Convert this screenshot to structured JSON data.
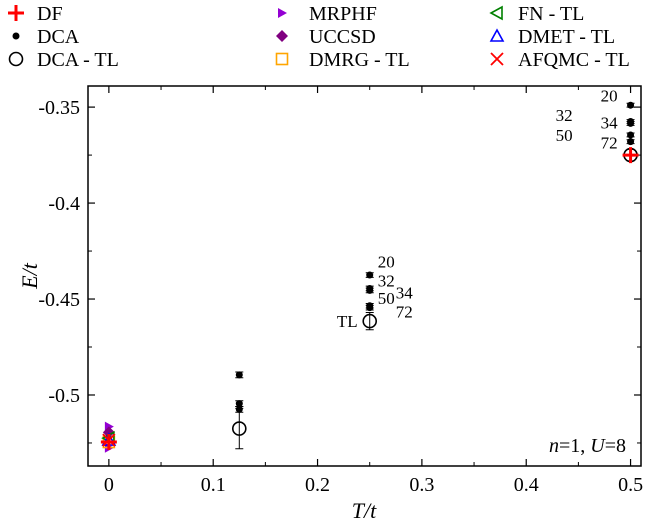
{
  "chart_data": {
    "type": "scatter",
    "xlabel": "T/t",
    "ylabel": "E/t",
    "xlim": [
      -0.02,
      0.51
    ],
    "ylim": [
      -0.537,
      -0.339
    ],
    "xticks": [
      "0",
      "0.1",
      "0.2",
      "0.3",
      "0.4",
      "0.5"
    ],
    "xtick_values": [
      0,
      0.1,
      0.2,
      0.3,
      0.4,
      0.5
    ],
    "yticks": [
      "-0.35",
      "-0.4",
      "-0.45",
      "-0.5"
    ],
    "ytick_values": [
      -0.35,
      -0.4,
      -0.45,
      -0.5
    ],
    "annotation": "n=1, U=8",
    "grid": false,
    "legend_placement": "top",
    "series": [
      {
        "name": "DF",
        "marker": "plus",
        "color": "#ff0000",
        "points": [
          {
            "x": 0,
            "y": -0.5245
          },
          {
            "x": 0.5,
            "y": -0.375
          }
        ]
      },
      {
        "name": "DCA",
        "marker": "dot",
        "color": "#000000",
        "points": [
          {
            "x": 0.125,
            "y": -0.4895,
            "err": 0.0015
          },
          {
            "x": 0.125,
            "y": -0.5045,
            "err": 0.0015
          },
          {
            "x": 0.125,
            "y": -0.5075,
            "err": 0.0015
          },
          {
            "x": 0.25,
            "y": -0.4375,
            "err": 0.0012
          },
          {
            "x": 0.25,
            "y": -0.4445,
            "err": 0.0012
          },
          {
            "x": 0.25,
            "y": -0.4455,
            "err": 0.0012
          },
          {
            "x": 0.25,
            "y": -0.4535,
            "err": 0.0012
          },
          {
            "x": 0.25,
            "y": -0.4545,
            "err": 0.0012
          },
          {
            "x": 0.5,
            "y": -0.349,
            "err": 0.001
          },
          {
            "x": 0.5,
            "y": -0.3575,
            "err": 0.001
          },
          {
            "x": 0.5,
            "y": -0.3585,
            "err": 0.001
          },
          {
            "x": 0.5,
            "y": -0.3645,
            "err": 0.001
          },
          {
            "x": 0.5,
            "y": -0.368,
            "err": 0.001
          }
        ]
      },
      {
        "name": "DCA - TL",
        "marker": "open-circle",
        "color": "#000000",
        "points": [
          {
            "x": 0.125,
            "y": -0.5175,
            "err": 0.0105
          },
          {
            "x": 0.25,
            "y": -0.4615,
            "err": 0.0045
          },
          {
            "x": 0.5,
            "y": -0.375,
            "err": 0.003
          }
        ]
      },
      {
        "name": "MRPHF",
        "marker": "right-triangle",
        "color": "#9400d3",
        "points": [
          {
            "x": 0,
            "y": -0.5275
          },
          {
            "x": 0,
            "y": -0.5165
          }
        ]
      },
      {
        "name": "UCCSD",
        "marker": "diamond",
        "color": "#800080",
        "points": [
          {
            "x": 0,
            "y": -0.5195
          }
        ]
      },
      {
        "name": "DMRG - TL",
        "marker": "open-square",
        "color": "#ffa500",
        "points": [
          {
            "x": 0,
            "y": -0.5245
          }
        ]
      },
      {
        "name": "FN - TL",
        "marker": "left-triangle",
        "color": "#008000",
        "points": [
          {
            "x": 0,
            "y": -0.5225
          }
        ]
      },
      {
        "name": "DMET - TL",
        "marker": "up-triangle",
        "color": "#0000ff",
        "points": [
          {
            "x": 0,
            "y": -0.5235
          }
        ]
      },
      {
        "name": "AFQMC - TL",
        "marker": "cross",
        "color": "#ff0000",
        "points": [
          {
            "x": 0,
            "y": -0.5235
          }
        ]
      }
    ],
    "point_labels": [
      {
        "text": "20",
        "x": 0.25,
        "y": -0.4335
      },
      {
        "text": "32",
        "x": 0.25,
        "y": -0.4435
      },
      {
        "text": "34",
        "x": 0.25,
        "y": -0.4455
      },
      {
        "text": "50",
        "x": 0.25,
        "y": -0.4525
      },
      {
        "text": "72",
        "x": 0.25,
        "y": -0.4555
      },
      {
        "text": "TL",
        "x": 0.25,
        "y": -0.4615
      },
      {
        "text": "20",
        "x": 0.5,
        "y": -0.347
      },
      {
        "text": "32",
        "x": 0.5,
        "y": -0.354
      },
      {
        "text": "34",
        "x": 0.5,
        "y": -0.358
      },
      {
        "text": "50",
        "x": 0.5,
        "y": -0.3645
      },
      {
        "text": "72",
        "x": 0.5,
        "y": -0.3685
      }
    ]
  }
}
